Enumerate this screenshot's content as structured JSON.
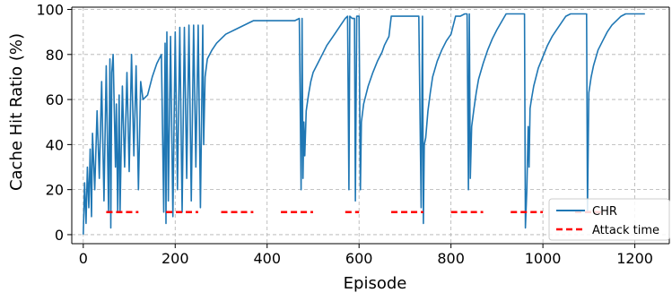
{
  "chart_data": {
    "type": "line",
    "title": "",
    "xlabel": "Episode",
    "ylabel": "Cache Hit Ratio (%)",
    "xlim": [
      -25,
      1275
    ],
    "ylim": [
      -4,
      101
    ],
    "xticks": [
      0,
      200,
      400,
      600,
      800,
      1000,
      1200
    ],
    "yticks": [
      0,
      20,
      40,
      60,
      80,
      100
    ],
    "grid": true,
    "legend_position": "lower-right",
    "series": [
      {
        "name": "CHR",
        "color": "#1f77b4",
        "x": [
          0,
          3,
          6,
          9,
          12,
          15,
          18,
          20,
          25,
          30,
          35,
          40,
          45,
          50,
          55,
          58,
          60,
          62,
          65,
          70,
          72,
          75,
          78,
          80,
          85,
          90,
          95,
          100,
          105,
          110,
          115,
          120,
          125,
          130,
          140,
          150,
          160,
          170,
          175,
          178,
          180,
          182,
          185,
          190,
          195,
          200,
          205,
          210,
          215,
          220,
          225,
          230,
          235,
          240,
          245,
          250,
          255,
          260,
          262,
          265,
          270,
          280,
          290,
          300,
          310,
          320,
          330,
          340,
          350,
          360,
          370,
          380,
          390,
          400,
          410,
          420,
          440,
          460,
          470,
          474,
          476,
          478,
          480,
          482,
          485,
          490,
          495,
          500,
          510,
          520,
          530,
          540,
          550,
          560,
          570,
          575,
          578,
          580,
          585,
          590,
          592,
          595,
          600,
          603,
          605,
          610,
          620,
          630,
          640,
          650,
          655,
          660,
          665,
          670,
          700,
          720,
          730,
          735,
          738,
          740,
          742,
          745,
          750,
          755,
          760,
          770,
          780,
          790,
          800,
          810,
          820,
          830,
          835,
          838,
          840,
          842,
          845,
          850,
          855,
          860,
          870,
          880,
          890,
          900,
          920,
          940,
          960,
          962,
          965,
          968,
          970,
          972,
          975,
          980,
          990,
          1000,
          1010,
          1020,
          1030,
          1040,
          1050,
          1060,
          1080,
          1090,
          1095,
          1097,
          1100,
          1105,
          1110,
          1120,
          1130,
          1140,
          1150,
          1160,
          1170,
          1180,
          1200,
          1222
        ],
        "y": [
          0,
          23,
          5,
          30,
          12,
          38,
          8,
          45,
          20,
          55,
          25,
          68,
          15,
          75,
          10,
          78,
          3,
          72,
          80,
          30,
          58,
          10,
          62,
          10,
          66,
          30,
          72,
          28,
          80,
          35,
          75,
          20,
          68,
          60,
          62,
          70,
          76,
          80,
          10,
          85,
          5,
          90,
          15,
          88,
          8,
          90,
          20,
          92,
          10,
          92,
          25,
          93,
          15,
          93,
          30,
          93,
          12,
          93,
          40,
          70,
          78,
          82,
          85,
          87,
          89,
          90,
          91,
          92,
          93,
          94,
          95,
          95,
          95,
          95,
          95,
          95,
          95,
          95,
          96,
          20,
          96,
          25,
          50,
          35,
          55,
          62,
          68,
          72,
          76,
          80,
          84,
          87,
          90,
          93,
          96,
          97,
          20,
          97,
          96,
          96,
          15,
          97,
          97,
          20,
          50,
          58,
          66,
          72,
          77,
          81,
          84,
          86,
          88,
          97,
          97,
          97,
          97,
          12,
          97,
          5,
          40,
          43,
          55,
          63,
          70,
          77,
          82,
          86,
          89,
          97,
          97,
          98,
          98,
          20,
          98,
          25,
          48,
          56,
          63,
          69,
          76,
          82,
          87,
          91,
          98,
          98,
          98,
          3,
          20,
          48,
          30,
          56,
          60,
          66,
          74,
          79,
          84,
          88,
          91,
          94,
          97,
          98,
          98,
          98,
          98,
          10,
          63,
          70,
          75,
          82,
          86,
          90,
          93,
          95,
          97,
          98,
          98,
          98
        ]
      },
      {
        "name": "Attack time",
        "color": "#ff0000",
        "style": "dashed",
        "y_constant": 10,
        "segments": [
          [
            50,
            120
          ],
          [
            180,
            250
          ],
          [
            300,
            370
          ],
          [
            430,
            500
          ],
          [
            570,
            600
          ],
          [
            670,
            740
          ],
          [
            800,
            870
          ],
          [
            930,
            1000
          ],
          [
            1070,
            1130
          ]
        ]
      }
    ]
  }
}
